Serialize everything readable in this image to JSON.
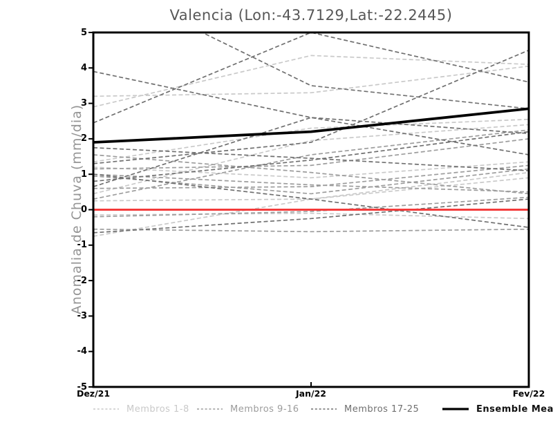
{
  "chart_data": {
    "type": "line",
    "title": "Valencia (Lon:-43.7129,Lat:-22.2445)",
    "ylabel": "Anomalia de Chuva (mm/dia)",
    "xlabel": "",
    "x_categories": [
      "Dez/21",
      "Jan/22",
      "Fev/22"
    ],
    "ylim": [
      -5,
      5
    ],
    "y_ticks": [
      "5",
      "4",
      "3",
      "2",
      "1",
      "0",
      "-1",
      "-2",
      "-3",
      "-4",
      "-5"
    ],
    "grid": false,
    "legend_position": "bottom",
    "frame_color": "#000000",
    "zero_line": {
      "color": "#f43b3b",
      "values": [
        0,
        0,
        0
      ]
    },
    "ensemble_mean": {
      "label": "Ensemble Mean",
      "color": "#000000",
      "values": [
        1.9,
        2.2,
        2.85
      ]
    },
    "member_groups": [
      {
        "label": "Membros 1-8",
        "color": "#c9c9c9",
        "series": [
          [
            2.9,
            4.35,
            4.1
          ],
          [
            3.2,
            3.3,
            4.05
          ],
          [
            1.35,
            2.3,
            2.55
          ],
          [
            1.2,
            0.9,
            1.35
          ],
          [
            0.45,
            1.95,
            2.4
          ],
          [
            -0.15,
            -0.1,
            -0.25
          ],
          [
            -0.75,
            0.3,
            1.05
          ],
          [
            0.25,
            0.3,
            0.9
          ]
        ]
      },
      {
        "label": "Membros 9-16",
        "color": "#9c9c9c",
        "series": [
          [
            1.55,
            1.05,
            0.45
          ],
          [
            1.15,
            1.25,
            2.0
          ],
          [
            0.95,
            0.45,
            1.15
          ],
          [
            0.6,
            0.65,
            1.25
          ],
          [
            -0.2,
            -0.05,
            0.35
          ],
          [
            -0.55,
            -0.62,
            -0.55
          ],
          [
            0.3,
            1.55,
            2.25
          ],
          [
            1.0,
            0.7,
            0.5
          ]
        ]
      },
      {
        "label": "Membros 17-25",
        "color": "#6f6f6f",
        "series": [
          [
            2.45,
            5.0,
            3.6
          ],
          [
            6.5,
            3.5,
            2.85
          ],
          [
            3.9,
            2.6,
            1.55
          ],
          [
            1.3,
            1.9,
            4.5
          ],
          [
            0.65,
            2.6,
            2.15
          ],
          [
            1.0,
            0.3,
            -0.5
          ],
          [
            0.8,
            1.4,
            2.2
          ],
          [
            -0.65,
            -0.25,
            0.3
          ],
          [
            1.75,
            1.45,
            1.1
          ]
        ]
      }
    ]
  }
}
